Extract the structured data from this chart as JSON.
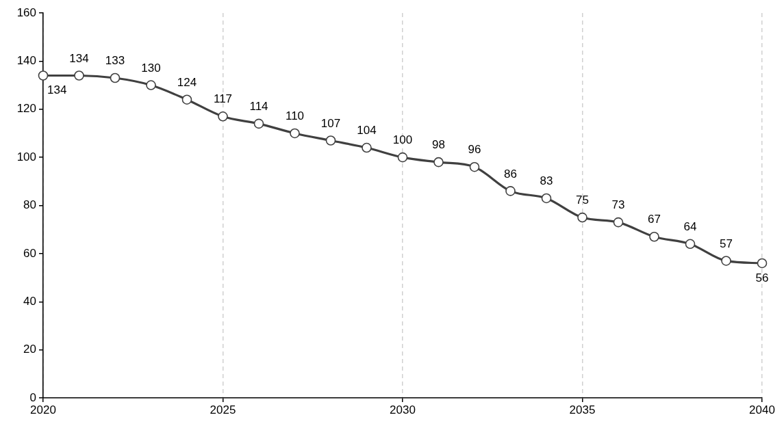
{
  "chart_data": {
    "type": "line",
    "x": [
      2020,
      2021,
      2022,
      2023,
      2024,
      2025,
      2026,
      2027,
      2028,
      2029,
      2030,
      2031,
      2032,
      2033,
      2034,
      2035,
      2036,
      2037,
      2038,
      2039,
      2040
    ],
    "values": [
      134,
      134,
      133,
      130,
      124,
      117,
      114,
      110,
      107,
      104,
      100,
      98,
      96,
      86,
      83,
      75,
      73,
      67,
      64,
      57,
      56
    ],
    "color": "#404040",
    "xlim": [
      2020,
      2040
    ],
    "xticks": [
      2020,
      2025,
      2030,
      2035,
      2040
    ],
    "ylim": [
      0,
      160
    ],
    "yticks": [
      0,
      20,
      40,
      60,
      80,
      100,
      120,
      140,
      160
    ],
    "grid": "x",
    "legend": false,
    "marker": "circle",
    "line_style": "solid",
    "data_labels": true
  }
}
